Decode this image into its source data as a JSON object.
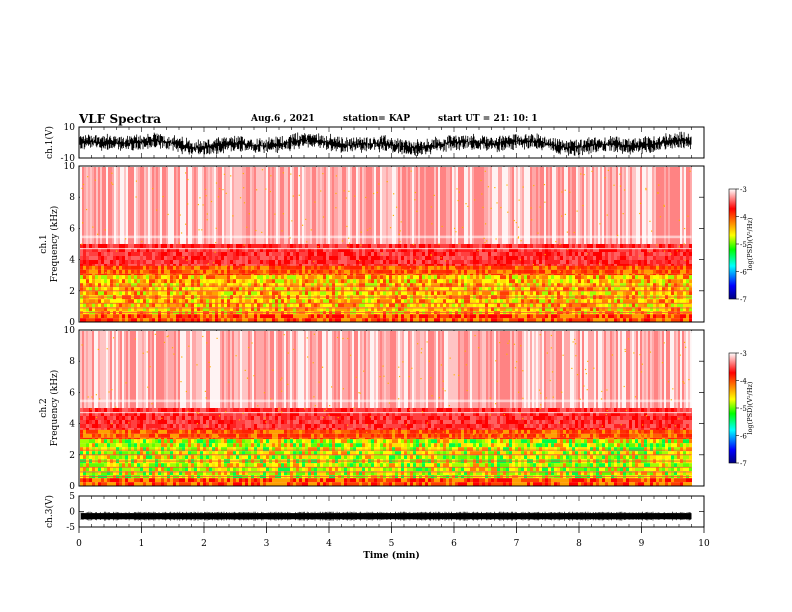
{
  "header": {
    "title": "VLF Spectra",
    "date": "Aug.6 , 2021",
    "station": "station= KAP",
    "start": "start UT = 21: 10: 1"
  },
  "colors": {
    "colorbar": [
      "#000080",
      "#0000ff",
      "#00ffff",
      "#00ff00",
      "#ffff00",
      "#ff8000",
      "#ff0000",
      "#ffffff"
    ]
  },
  "chart_data": [
    {
      "type": "line",
      "panel": "ch1-waveform",
      "ylabel": "ch.1(V)",
      "ylim": [
        -10,
        10
      ],
      "yticks": [
        "10",
        "-10"
      ],
      "xlim": [
        0,
        10
      ]
    },
    {
      "type": "heatmap",
      "panel": "ch1-spectrogram",
      "ylabel": "ch.1",
      "ylabel2": "Frequency (kHz)",
      "ylim": [
        0,
        10
      ],
      "yticks": [
        "10",
        "8",
        "6",
        "4",
        "2",
        "0"
      ],
      "xlim": [
        0,
        10
      ],
      "data_end_min": 9.8,
      "colorbar": {
        "label": "log(PSD)(V²/Hz)",
        "range": [
          -7,
          -3
        ],
        "ticks": [
          "-3",
          "-4",
          "-5",
          "-6",
          "-7"
        ]
      }
    },
    {
      "type": "heatmap",
      "panel": "ch2-spectrogram",
      "ylabel": "ch.2",
      "ylabel2": "Frequency (kHz)",
      "ylim": [
        0,
        10
      ],
      "yticks": [
        "10",
        "8",
        "6",
        "4",
        "2",
        "0"
      ],
      "xlim": [
        0,
        10
      ],
      "data_end_min": 9.8,
      "colorbar": {
        "label": "log(PSD)(V²/Hz)",
        "range": [
          -7,
          -3
        ],
        "ticks": [
          "-3",
          "-4",
          "-5",
          "-6",
          "-7"
        ]
      }
    },
    {
      "type": "line",
      "panel": "ch3-waveform",
      "ylabel": "ch.3(V)",
      "ylim": [
        -5,
        5
      ],
      "yticks": [
        "5",
        "0",
        "-5"
      ],
      "xlim": [
        0,
        10
      ],
      "xlabel": "Time (min)",
      "xticks": [
        "0",
        "1",
        "2",
        "3",
        "4",
        "5",
        "6",
        "7",
        "8",
        "9",
        "10"
      ]
    }
  ]
}
